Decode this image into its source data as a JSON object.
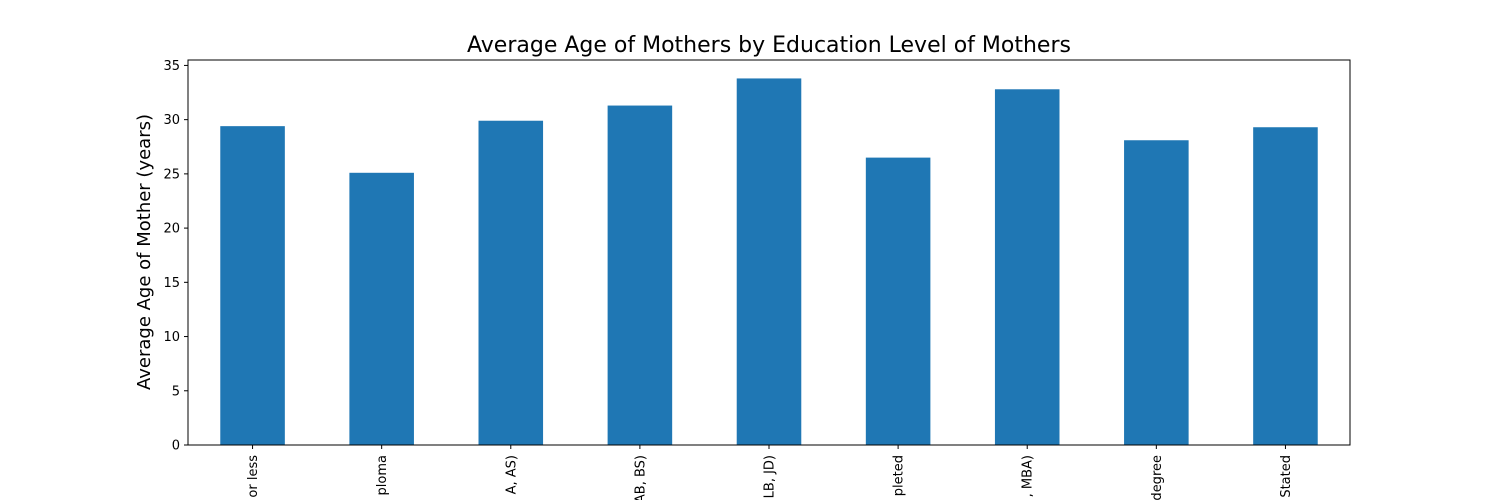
{
  "chart_data": {
    "type": "bar",
    "title": "Average Age of Mothers by Education Level of Mothers",
    "xlabel": "",
    "ylabel": "Average Age of Mother (years)",
    "categories": [
      "or less",
      "ploma",
      "A, AS)",
      "AB, BS)",
      "LB, JD)",
      "pleted",
      ", MBA)",
      "degree",
      "Stated"
    ],
    "values": [
      29.4,
      25.1,
      29.9,
      31.3,
      33.8,
      26.5,
      32.8,
      28.1,
      29.3
    ],
    "ylim": [
      0,
      35.5
    ],
    "yticks": [
      0,
      5,
      10,
      15,
      20,
      25,
      30,
      35
    ],
    "grid": false,
    "bar_color": "#1f77b4"
  }
}
